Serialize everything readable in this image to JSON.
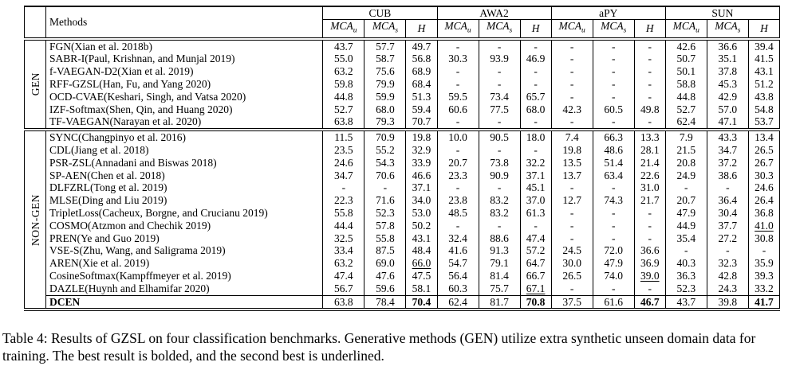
{
  "colors": {
    "text": "#000000",
    "background": "#ffffff",
    "rule": "#000000"
  },
  "caption": "Table 4: Results of GZSL on four classification benchmarks. Generative methods (GEN) utilize extra synthetic unseen domain data for training. The best result is bolded, and the second best is underlined.",
  "table": {
    "methods_label": "Methods",
    "dataset_groups": [
      "CUB",
      "AWA2",
      "aPY",
      "SUN"
    ],
    "subcolumns": [
      {
        "base": "MCA",
        "sub": "u"
      },
      {
        "base": "MCA",
        "sub": "s"
      },
      {
        "base": "H",
        "sub": ""
      }
    ],
    "sections": [
      {
        "label": "GEN",
        "rows": [
          {
            "method": "FGN(Xian et al. 2018b)",
            "values": [
              "43.7",
              "57.7",
              "49.7",
              "-",
              "-",
              "-",
              "-",
              "-",
              "-",
              "42.6",
              "36.6",
              "39.4"
            ]
          },
          {
            "method": "SABR-I(Paul, Krishnan, and Munjal 2019)",
            "values": [
              "55.0",
              "58.7",
              "56.8",
              "30.3",
              "93.9",
              "46.9",
              "-",
              "-",
              "-",
              "50.7",
              "35.1",
              "41.5"
            ]
          },
          {
            "method": "f-VAEGAN-D2(Xian et al. 2019)",
            "values": [
              "63.2",
              "75.6",
              "68.9",
              "-",
              "-",
              "-",
              "-",
              "-",
              "-",
              "50.1",
              "37.8",
              "43.1"
            ]
          },
          {
            "method": "RFF-GZSL(Han, Fu, and Yang 2020)",
            "values": [
              "59.8",
              "79.9",
              "68.4",
              "-",
              "-",
              "-",
              "-",
              "-",
              "-",
              "58.8",
              "45.3",
              "51.2"
            ]
          },
          {
            "method": "OCD-CVAE(Keshari, Singh, and Vatsa 2020)",
            "values": [
              "44.8",
              "59.9",
              "51.3",
              "59.5",
              "73.4",
              "65.7",
              "-",
              "-",
              "-",
              "44.8",
              "42.9",
              "43.8"
            ]
          },
          {
            "method": "IZF-Softmax(Shen, Qin, and Huang 2020)",
            "values": [
              "52.7",
              "68.0",
              "59.4",
              "60.6",
              "77.5",
              "68.0",
              "42.3",
              "60.5",
              "49.8",
              "52.7",
              "57.0",
              "54.8"
            ]
          },
          {
            "method": "TF-VAEGAN(Narayan et al. 2020)",
            "values": [
              "63.8",
              "79.3",
              "70.7",
              "-",
              "-",
              "-",
              "-",
              "-",
              "-",
              "62.4",
              "47.1",
              "53.7"
            ]
          }
        ]
      },
      {
        "label": "NON-GEN",
        "rows": [
          {
            "method": "SYNC(Changpinyo et al. 2016)",
            "values": [
              "11.5",
              "70.9",
              "19.8",
              "10.0",
              "90.5",
              "18.0",
              "7.4",
              "66.3",
              "13.3",
              "7.9",
              "43.3",
              "13.4"
            ]
          },
          {
            "method": "CDL(Jiang et al. 2018)",
            "values": [
              "23.5",
              "55.2",
              "32.9",
              "-",
              "-",
              "-",
              "19.8",
              "48.6",
              "28.1",
              "21.5",
              "34.7",
              "26.5"
            ]
          },
          {
            "method": "PSR-ZSL(Annadani and Biswas 2018)",
            "values": [
              "24.6",
              "54.3",
              "33.9",
              "20.7",
              "73.8",
              "32.2",
              "13.5",
              "51.4",
              "21.4",
              "20.8",
              "37.2",
              "26.7"
            ]
          },
          {
            "method": "SP-AEN(Chen et al. 2018)",
            "values": [
              "34.7",
              "70.6",
              "46.6",
              "23.3",
              "90.9",
              "37.1",
              "13.7",
              "63.4",
              "22.6",
              "24.9",
              "38.6",
              "30.3"
            ]
          },
          {
            "method": "DLFZRL(Tong et al. 2019)",
            "values": [
              "-",
              "-",
              "37.1",
              "-",
              "-",
              "45.1",
              "-",
              "-",
              "31.0",
              "-",
              "-",
              "24.6"
            ]
          },
          {
            "method": "MLSE(Ding and Liu 2019)",
            "values": [
              "22.3",
              "71.6",
              "34.0",
              "23.8",
              "83.2",
              "37.0",
              "12.7",
              "74.3",
              "21.7",
              "20.7",
              "36.4",
              "26.4"
            ]
          },
          {
            "method": "TripletLoss(Cacheux, Borgne, and Crucianu 2019)",
            "values": [
              "55.8",
              "52.3",
              "53.0",
              "48.5",
              "83.2",
              "61.3",
              "-",
              "-",
              "-",
              "47.9",
              "30.4",
              "36.8"
            ]
          },
          {
            "method": "COSMO(Atzmon and Chechik 2019)",
            "values": [
              "44.4",
              "57.8",
              "50.2",
              "-",
              "-",
              "-",
              "-",
              "-",
              "-",
              "44.9",
              "37.7",
              "41.0"
            ],
            "underline": [
              11
            ]
          },
          {
            "method": "PREN(Ye and Guo 2019)",
            "values": [
              "32.5",
              "55.8",
              "43.1",
              "32.4",
              "88.6",
              "47.4",
              "-",
              "-",
              "-",
              "35.4",
              "27.2",
              "30.8"
            ]
          },
          {
            "method": "VSE-S(Zhu, Wang, and Saligrama 2019)",
            "values": [
              "33.4",
              "87.5",
              "48.4",
              "41.6",
              "91.3",
              "57.2",
              "24.5",
              "72.0",
              "36.6",
              "-",
              "-",
              "-"
            ]
          },
          {
            "method": "AREN(Xie et al. 2019)",
            "values": [
              "63.2",
              "69.0",
              "66.0",
              "54.7",
              "79.1",
              "64.7",
              "30.0",
              "47.9",
              "36.9",
              "40.3",
              "32.3",
              "35.9"
            ],
            "underline": [
              2
            ]
          },
          {
            "method": "CosineSoftmax(Kampffmeyer et al. 2019)",
            "values": [
              "47.4",
              "47.6",
              "47.5",
              "56.4",
              "81.4",
              "66.7",
              "26.5",
              "74.0",
              "39.0",
              "36.3",
              "42.8",
              "39.3"
            ],
            "underline": [
              8
            ]
          },
          {
            "method": "DAZLE(Huynh and Elhamifar 2020)",
            "values": [
              "56.7",
              "59.6",
              "58.1",
              "60.3",
              "75.7",
              "67.1",
              "-",
              "-",
              "-",
              "52.3",
              "24.3",
              "33.2"
            ],
            "underline": [
              5
            ]
          },
          {
            "method": "DCEN",
            "method_bold": true,
            "separator_above": true,
            "values": [
              "63.8",
              "78.4",
              "70.4",
              "62.4",
              "81.7",
              "70.8",
              "37.5",
              "61.6",
              "46.7",
              "43.7",
              "39.8",
              "41.7"
            ],
            "bold": [
              2,
              5,
              8,
              11
            ]
          }
        ]
      }
    ]
  }
}
